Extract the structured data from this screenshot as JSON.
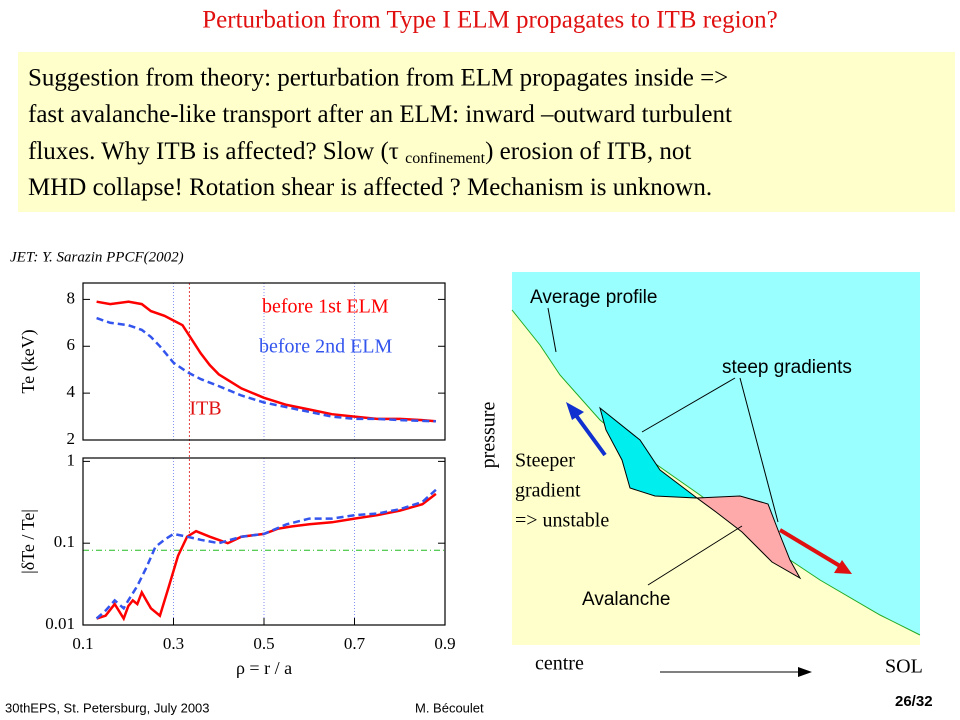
{
  "title": "Perturbation from Type I ELM propagates to ITB region?",
  "summary": {
    "lines": [
      "Suggestion from theory: perturbation from ELM propagates inside =>",
      "fast avalanche-like transport after an ELM: inward –outward turbulent",
      {
        "parts": [
          "fluxes. Why ITB is affected? Slow (τ ",
          "confinement",
          ") erosion of ITB, not"
        ]
      },
      "MHD collapse! Rotation shear is affected ? Mechanism is unknown."
    ]
  },
  "citation": "JET: Y. Sarazin PPCF(2002)",
  "chart_data": [
    {
      "type": "line",
      "ylabel": "Te (keV)",
      "xlim": [
        0.1,
        0.9
      ],
      "ylim": [
        2,
        8.7
      ],
      "yticks": [
        2,
        4,
        6,
        8
      ],
      "vlines": [
        0.3,
        0.5,
        0.7
      ],
      "annotation": {
        "text": "ITB",
        "x": 0.335
      },
      "series": [
        {
          "name": "before 1st ELM",
          "color": "#ff0000",
          "dashed": false,
          "x": [
            0.13,
            0.16,
            0.2,
            0.23,
            0.25,
            0.28,
            0.3,
            0.32,
            0.34,
            0.36,
            0.38,
            0.4,
            0.45,
            0.5,
            0.55,
            0.6,
            0.65,
            0.7,
            0.75,
            0.8,
            0.85,
            0.88
          ],
          "values": [
            7.9,
            7.8,
            7.9,
            7.8,
            7.5,
            7.3,
            7.1,
            6.9,
            6.3,
            5.7,
            5.2,
            4.8,
            4.2,
            3.8,
            3.5,
            3.3,
            3.1,
            3.0,
            2.9,
            2.9,
            2.85,
            2.8
          ]
        },
        {
          "name": "before 2nd ELM",
          "color": "#3355ee",
          "dashed": true,
          "x": [
            0.13,
            0.16,
            0.2,
            0.23,
            0.25,
            0.27,
            0.3,
            0.33,
            0.36,
            0.4,
            0.45,
            0.5,
            0.55,
            0.6,
            0.65,
            0.7,
            0.75,
            0.8,
            0.88
          ],
          "values": [
            7.2,
            7.0,
            6.9,
            6.7,
            6.4,
            6.0,
            5.3,
            4.9,
            4.6,
            4.3,
            3.9,
            3.6,
            3.4,
            3.2,
            3.0,
            2.9,
            2.9,
            2.85,
            2.8
          ]
        }
      ]
    },
    {
      "type": "line",
      "ylabel": "|δTe / Te|",
      "xlabel": "ρ = r / a",
      "log_y": true,
      "xlim": [
        0.1,
        0.9
      ],
      "xticks": [
        0.1,
        0.3,
        0.5,
        0.7,
        0.9
      ],
      "ylim": [
        0.01,
        1.1
      ],
      "yticks": [
        0.01,
        0.1,
        1
      ],
      "vlines": [
        0.3,
        0.5,
        0.7
      ],
      "hline": 0.082,
      "series": [
        {
          "color": "#ff0000",
          "dashed": false,
          "x": [
            0.13,
            0.15,
            0.17,
            0.19,
            0.2,
            0.21,
            0.22,
            0.23,
            0.24,
            0.25,
            0.27,
            0.29,
            0.31,
            0.33,
            0.35,
            0.38,
            0.42,
            0.45,
            0.5,
            0.53,
            0.56,
            0.6,
            0.65,
            0.7,
            0.75,
            0.8,
            0.85,
            0.88
          ],
          "values": [
            0.012,
            0.013,
            0.018,
            0.012,
            0.017,
            0.02,
            0.018,
            0.025,
            0.02,
            0.016,
            0.013,
            0.03,
            0.07,
            0.12,
            0.14,
            0.12,
            0.1,
            0.12,
            0.13,
            0.15,
            0.16,
            0.17,
            0.18,
            0.2,
            0.22,
            0.25,
            0.3,
            0.4
          ]
        },
        {
          "color": "#3355ee",
          "dashed": true,
          "x": [
            0.13,
            0.15,
            0.17,
            0.19,
            0.2,
            0.22,
            0.24,
            0.26,
            0.28,
            0.3,
            0.33,
            0.36,
            0.4,
            0.45,
            0.5,
            0.55,
            0.6,
            0.65,
            0.7,
            0.75,
            0.8,
            0.85,
            0.88
          ],
          "values": [
            0.012,
            0.015,
            0.02,
            0.016,
            0.02,
            0.03,
            0.05,
            0.09,
            0.11,
            0.13,
            0.12,
            0.11,
            0.1,
            0.12,
            0.13,
            0.17,
            0.2,
            0.2,
            0.22,
            0.23,
            0.26,
            0.32,
            0.45
          ]
        }
      ]
    }
  ],
  "diagram": {
    "average": "Average profile",
    "steep": "steep gradients",
    "steeper": [
      "Steeper",
      "gradient",
      "=> unstable"
    ],
    "avalanche": "Avalanche",
    "ylabel": "pressure",
    "left": "centre",
    "right": "SOL"
  },
  "footer": {
    "event": "30thEPS, St. Petersburg, July 2003",
    "author": "M. Bécoulet",
    "page": "26/32"
  }
}
